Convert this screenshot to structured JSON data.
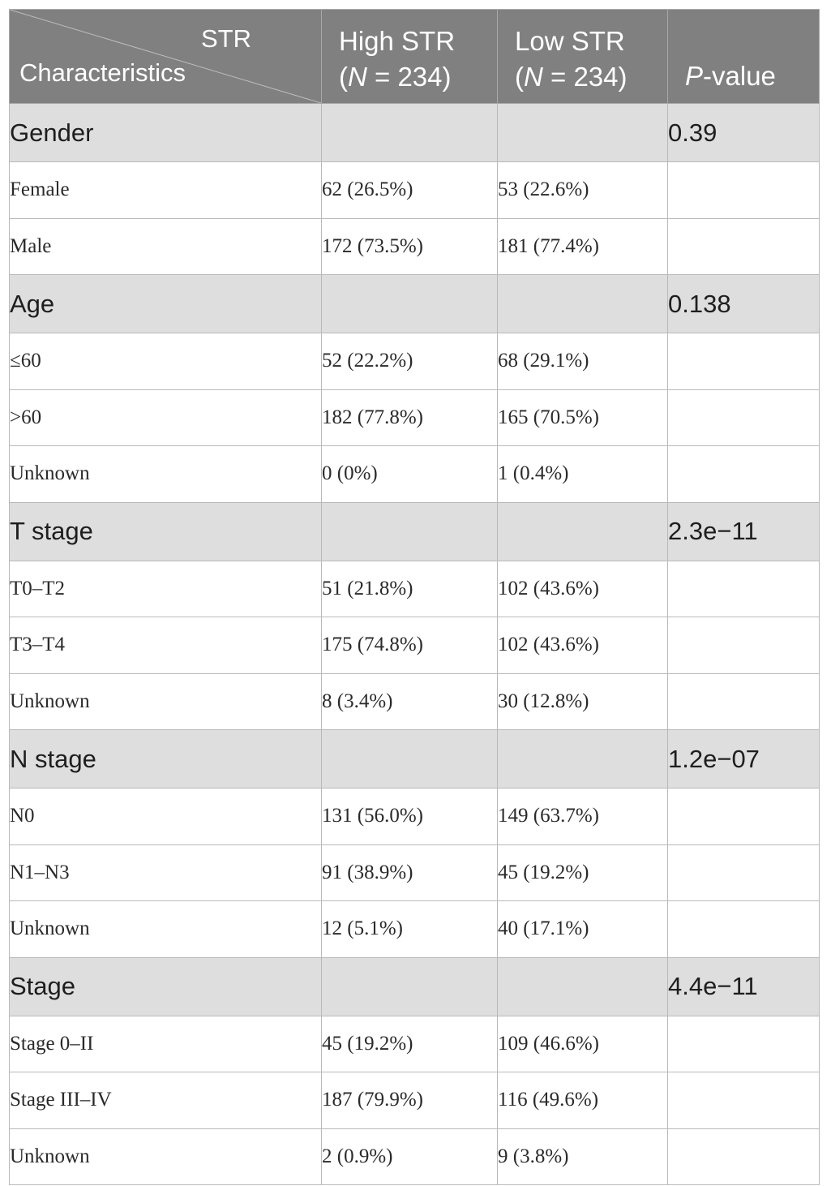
{
  "header": {
    "diag_top": "STR",
    "diag_bottom": "Characteristics",
    "high_line1": "High STR",
    "high_n": "N",
    "high_rest": " = 234)",
    "low_line1": "Low STR",
    "low_n": "N",
    "low_rest": " = 234)",
    "p_italic": "P",
    "p_rest": "-value",
    "open_paren": "("
  },
  "groups": [
    {
      "label": "Gender",
      "p": "0.39",
      "rows": [
        {
          "label": "Female",
          "high": "62 (26.5%)",
          "low": "53 (22.6%)"
        },
        {
          "label": "Male",
          "high": "172 (73.5%)",
          "low": "181 (77.4%)"
        }
      ]
    },
    {
      "label": "Age",
      "p": "0.138",
      "rows": [
        {
          "label": "≤60",
          "high": "52 (22.2%)",
          "low": "68 (29.1%)"
        },
        {
          "label": ">60",
          "high": "182 (77.8%)",
          "low": "165 (70.5%)"
        },
        {
          "label": "Unknown",
          "high": "0 (0%)",
          "low": "1 (0.4%)"
        }
      ]
    },
    {
      "label": "T stage",
      "p": "2.3e−11",
      "rows": [
        {
          "label": "T0–T2",
          "high": "51 (21.8%)",
          "low": "102 (43.6%)"
        },
        {
          "label": "T3–T4",
          "high": "175 (74.8%)",
          "low": "102 (43.6%)"
        },
        {
          "label": "Unknown",
          "high": "8 (3.4%)",
          "low": "30 (12.8%)"
        }
      ]
    },
    {
      "label": "N stage",
      "p": "1.2e−07",
      "rows": [
        {
          "label": "N0",
          "high": "131 (56.0%)",
          "low": "149 (63.7%)"
        },
        {
          "label": "N1–N3",
          "high": "91 (38.9%)",
          "low": "45 (19.2%)"
        },
        {
          "label": "Unknown",
          "high": "12 (5.1%)",
          "low": "40 (17.1%)"
        }
      ]
    },
    {
      "label": "Stage",
      "p": "4.4e−11",
      "rows": [
        {
          "label": "Stage 0–II",
          "high": "45 (19.2%)",
          "low": "109 (46.6%)"
        },
        {
          "label": "Stage III–IV",
          "high": "187 (79.9%)",
          "low": "116 (49.6%)"
        },
        {
          "label": "Unknown",
          "high": "2 (0.9%)",
          "low": "9 (3.8%)"
        }
      ]
    }
  ]
}
